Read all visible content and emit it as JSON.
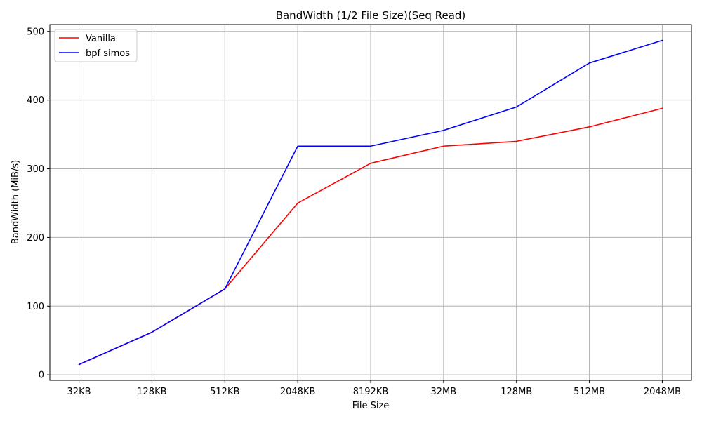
{
  "chart_data": {
    "type": "line",
    "title": "BandWidth (1/2 File Size)(Seq Read)",
    "xlabel": "File Size",
    "ylabel": "BandWidth (MiB/s)",
    "categories": [
      "32KB",
      "128KB",
      "512KB",
      "2048KB",
      "8192KB",
      "32MB",
      "128MB",
      "512MB",
      "2048MB"
    ],
    "yticks": [
      0,
      100,
      200,
      300,
      400,
      500
    ],
    "ylim": [
      -8,
      510
    ],
    "grid": true,
    "legend_position": "top-left",
    "series": [
      {
        "name": "Vanilla",
        "color": "#ff0000",
        "values": [
          15,
          62,
          125,
          250,
          308,
          333,
          340,
          361,
          388
        ]
      },
      {
        "name": "bpf simos",
        "color": "#0000ff",
        "values": [
          15,
          62,
          125,
          333,
          333,
          356,
          390,
          454,
          487
        ]
      }
    ]
  }
}
